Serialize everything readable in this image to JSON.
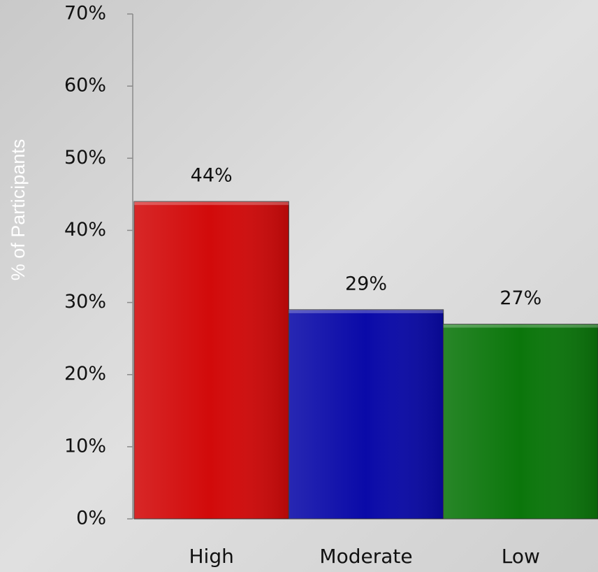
{
  "chart_data": {
    "type": "bar",
    "y_label": "% of Participants",
    "categories": [
      "High",
      "Moderate",
      "Low"
    ],
    "series": [
      {
        "name": "Participants",
        "values": [
          44,
          29,
          27
        ],
        "value_labels": [
          "44%",
          "29%",
          "27%"
        ]
      }
    ],
    "colors": [
      "#d20a0a",
      "#0a0aa8",
      "#0b760b"
    ],
    "ylim": [
      0,
      70
    ],
    "yticks": [
      {
        "value": 0,
        "label": "0%"
      },
      {
        "value": 10,
        "label": "10%"
      },
      {
        "value": 20,
        "label": "20%"
      },
      {
        "value": 30,
        "label": "30%"
      },
      {
        "value": 40,
        "label": "40%"
      },
      {
        "value": 50,
        "label": "50%"
      },
      {
        "value": 60,
        "label": "60%"
      },
      {
        "value": 70,
        "label": "70%"
      }
    ],
    "grid": false
  }
}
